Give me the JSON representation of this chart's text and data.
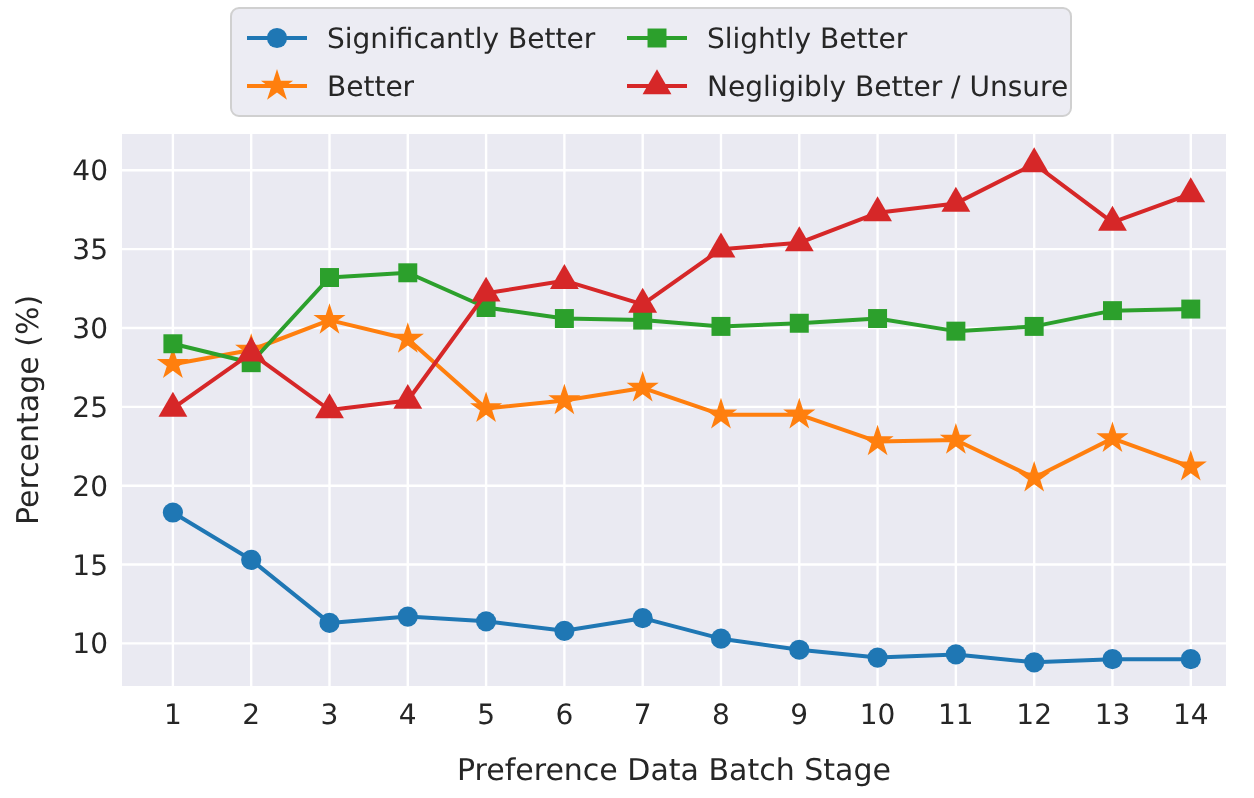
{
  "chart_data": {
    "type": "line",
    "xlabel": "Preference Data Batch Stage",
    "ylabel": "Percentage (%)",
    "x": [
      1,
      2,
      3,
      4,
      5,
      6,
      7,
      8,
      9,
      10,
      11,
      12,
      13,
      14
    ],
    "xlim": [
      0.35,
      14.45
    ],
    "xticks": [
      1,
      2,
      3,
      4,
      5,
      6,
      7,
      8,
      9,
      10,
      11,
      12,
      13,
      14
    ],
    "ylim": [
      7.3,
      42.3
    ],
    "yticks": [
      10,
      15,
      20,
      25,
      30,
      35,
      40
    ],
    "grid": true,
    "legend": "top",
    "line_style": "solid",
    "series": [
      {
        "name": "Significantly Better",
        "color": "#1f77b4",
        "marker": "circle",
        "values": [
          18.3,
          15.3,
          11.3,
          11.7,
          11.4,
          10.8,
          11.6,
          10.3,
          9.6,
          9.1,
          9.3,
          8.8,
          9.0,
          9.0
        ]
      },
      {
        "name": "Better",
        "color": "#ff7f0e",
        "marker": "star",
        "values": [
          27.7,
          28.6,
          30.5,
          29.3,
          24.9,
          25.4,
          26.2,
          24.5,
          24.5,
          22.8,
          22.9,
          20.5,
          23.0,
          21.2
        ]
      },
      {
        "name": "Slightly Better",
        "color": "#2ca02c",
        "marker": "square",
        "values": [
          29.0,
          27.8,
          33.2,
          33.5,
          31.3,
          30.6,
          30.5,
          30.1,
          30.3,
          30.6,
          29.8,
          30.1,
          31.1,
          31.2
        ]
      },
      {
        "name": "Negligibly Better / Unsure",
        "color": "#d62728",
        "marker": "triangle",
        "values": [
          24.9,
          28.4,
          24.8,
          25.4,
          32.2,
          33.0,
          31.5,
          35.0,
          35.4,
          37.3,
          37.9,
          40.4,
          36.7,
          38.5
        ]
      }
    ]
  }
}
